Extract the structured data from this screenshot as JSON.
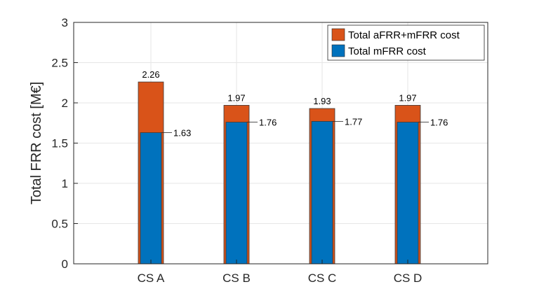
{
  "chart_data": {
    "type": "bar",
    "ylabel": "Total FRR cost [M€]",
    "ylim": [
      0,
      3
    ],
    "yticks": [
      "0",
      "0.5",
      "1",
      "1.5",
      "2",
      "2.5",
      "3"
    ],
    "categories": [
      "CS A",
      "CS B",
      "CS C",
      "CS D"
    ],
    "grid": true,
    "legend_position": "top-right",
    "series": [
      {
        "name": "Total aFRR+mFRR cost",
        "color": "#d95319",
        "values": [
          2.26,
          1.97,
          1.93,
          1.97
        ],
        "labels": [
          "2.26",
          "1.97",
          "1.93",
          "1.97"
        ]
      },
      {
        "name": "Total mFRR cost",
        "color": "#0072bd",
        "values": [
          1.63,
          1.76,
          1.77,
          1.76
        ],
        "labels": [
          "1.63",
          "1.76",
          "1.77",
          "1.76"
        ]
      }
    ]
  }
}
